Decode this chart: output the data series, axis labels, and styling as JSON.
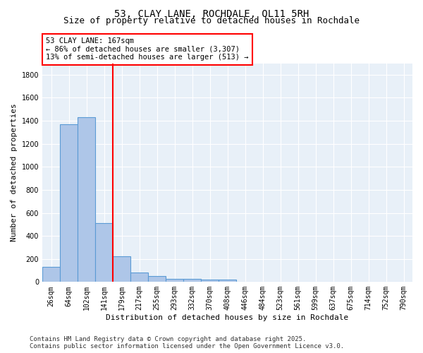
{
  "title": "53, CLAY LANE, ROCHDALE, OL11 5RH",
  "subtitle": "Size of property relative to detached houses in Rochdale",
  "xlabel": "Distribution of detached houses by size in Rochdale",
  "ylabel": "Number of detached properties",
  "footer_line1": "Contains HM Land Registry data © Crown copyright and database right 2025.",
  "footer_line2": "Contains public sector information licensed under the Open Government Licence v3.0.",
  "categories": [
    "26sqm",
    "64sqm",
    "102sqm",
    "141sqm",
    "179sqm",
    "217sqm",
    "255sqm",
    "293sqm",
    "332sqm",
    "370sqm",
    "408sqm",
    "446sqm",
    "484sqm",
    "523sqm",
    "561sqm",
    "599sqm",
    "637sqm",
    "675sqm",
    "714sqm",
    "752sqm",
    "790sqm"
  ],
  "values": [
    130,
    1370,
    1430,
    510,
    225,
    80,
    50,
    28,
    25,
    20,
    20,
    0,
    0,
    0,
    0,
    0,
    0,
    0,
    0,
    0,
    0
  ],
  "bar_color": "#aec6e8",
  "bar_edge_color": "#5b9bd5",
  "vline_x": 3.5,
  "vline_color": "red",
  "annotation_text": "53 CLAY LANE: 167sqm\n← 86% of detached houses are smaller (3,307)\n13% of semi-detached houses are larger (513) →",
  "ylim": [
    0,
    1900
  ],
  "yticks": [
    0,
    200,
    400,
    600,
    800,
    1000,
    1200,
    1400,
    1600,
    1800
  ],
  "bg_color": "#e8f0f8",
  "grid_color": "white",
  "title_fontsize": 10,
  "subtitle_fontsize": 9,
  "axis_label_fontsize": 8,
  "tick_fontsize": 7,
  "footer_fontsize": 6.5,
  "ann_fontsize": 7.5
}
